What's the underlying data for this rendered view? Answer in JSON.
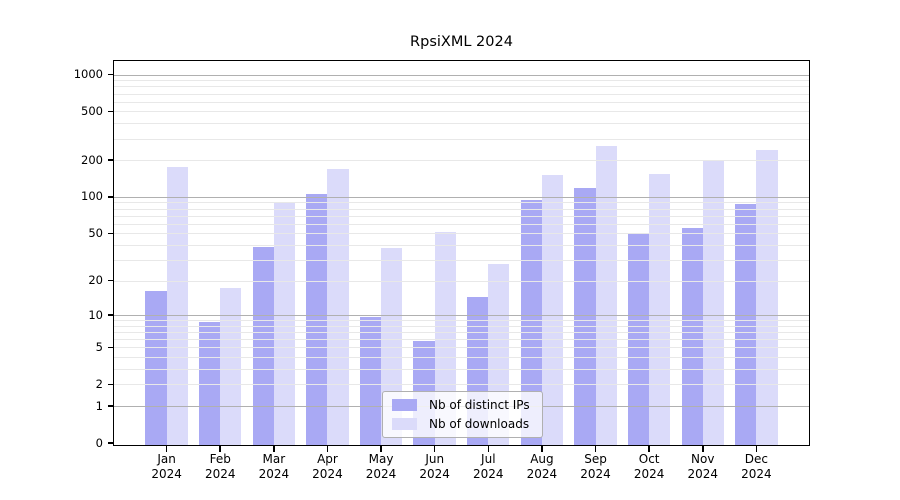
{
  "chart_data": {
    "type": "bar",
    "title": "RpsiXML 2024",
    "categories": [
      "Jan",
      "Feb",
      "Mar",
      "Apr",
      "May",
      "Jun",
      "Jul",
      "Aug",
      "Sep",
      "Oct",
      "Nov",
      "Dec"
    ],
    "category_year": "2024",
    "series": [
      {
        "name": "Nb of distinct IPs",
        "color": "#a9a9f4",
        "values": [
          17,
          9,
          40,
          109,
          10,
          6,
          15,
          98,
          123,
          52,
          58,
          90
        ]
      },
      {
        "name": "Nb of downloads",
        "color": "#dbdbfa",
        "values": [
          184,
          18,
          93,
          175,
          39,
          53,
          29,
          158,
          270,
          160,
          208,
          250
        ]
      }
    ],
    "yscale": "log1p",
    "yticks": [
      0,
      1,
      2,
      5,
      10,
      20,
      50,
      100,
      200,
      500,
      1000
    ],
    "ylim": [
      0,
      1300
    ],
    "grid": true,
    "grid_color_minor": "#e8e8e8",
    "grid_color_major": "#b0b0b0",
    "legend_position": "lower center"
  }
}
